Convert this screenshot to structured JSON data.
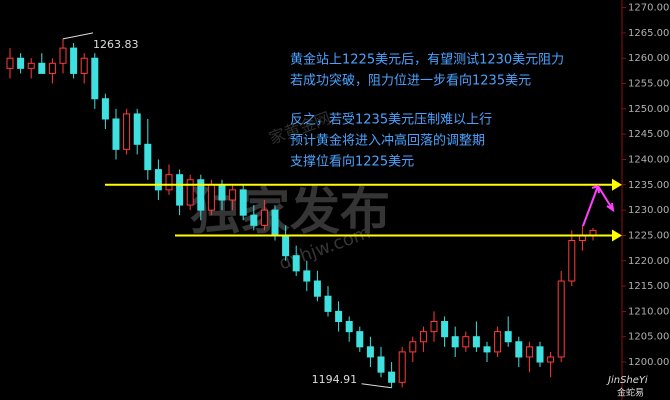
{
  "chart_data": {
    "type": "candlestick",
    "ylim": [
      1192.5,
      1271.5
    ],
    "yticks": [
      {
        "value": 1270,
        "label": "1270.00"
      },
      {
        "value": 1265,
        "label": "1265.00"
      },
      {
        "value": 1260,
        "label": "1260.00"
      },
      {
        "value": 1255,
        "label": "1255.00"
      },
      {
        "value": 1250,
        "label": "1250.00"
      },
      {
        "value": 1245,
        "label": "1245.00"
      },
      {
        "value": 1240,
        "label": "1240.00"
      },
      {
        "value": 1235,
        "label": "1235.00"
      },
      {
        "value": 1230,
        "label": "1230.00"
      },
      {
        "value": 1225,
        "label": "1225.00"
      },
      {
        "value": 1220,
        "label": "1220.00"
      },
      {
        "value": 1215,
        "label": "1215.00"
      },
      {
        "value": 1210,
        "label": "1210.00"
      },
      {
        "value": 1205,
        "label": "1205.00"
      },
      {
        "value": 1200,
        "label": "1200.00"
      }
    ],
    "up_color": "#ff3b3b",
    "down_color": "#3fe0e0",
    "line_color": "#ffff00",
    "ohlc": [
      [
        1258,
        1262,
        1256,
        1260
      ],
      [
        1260,
        1261,
        1257,
        1258
      ],
      [
        1258,
        1260,
        1256,
        1259
      ],
      [
        1259,
        1261,
        1257,
        1257
      ],
      [
        1257,
        1260,
        1255,
        1259
      ],
      [
        1259,
        1263.83,
        1257,
        1262
      ],
      [
        1262,
        1263,
        1256,
        1257
      ],
      [
        1257,
        1261,
        1255,
        1260
      ],
      [
        1260,
        1261,
        1250,
        1252
      ],
      [
        1252,
        1253,
        1246,
        1248
      ],
      [
        1248,
        1250,
        1240,
        1242
      ],
      [
        1242,
        1250,
        1241,
        1249
      ],
      [
        1249,
        1250,
        1241,
        1243
      ],
      [
        1243,
        1248,
        1236,
        1238
      ],
      [
        1238,
        1240,
        1232,
        1234
      ],
      [
        1234,
        1239,
        1233,
        1237
      ],
      [
        1237,
        1238,
        1229,
        1231
      ],
      [
        1231,
        1237,
        1230,
        1236
      ],
      [
        1236,
        1237,
        1228,
        1230
      ],
      [
        1230,
        1236,
        1229,
        1235
      ],
      [
        1235,
        1236,
        1230,
        1232
      ],
      [
        1232,
        1235,
        1230,
        1234
      ],
      [
        1234,
        1235,
        1228,
        1229
      ],
      [
        1229,
        1231,
        1226,
        1227
      ],
      [
        1227,
        1232,
        1226,
        1230
      ],
      [
        1230,
        1231,
        1224,
        1225
      ],
      [
        1225,
        1227,
        1220,
        1221
      ],
      [
        1221,
        1223,
        1217,
        1218
      ],
      [
        1218,
        1220,
        1214,
        1216
      ],
      [
        1216,
        1218,
        1212,
        1213
      ],
      [
        1213,
        1215,
        1209,
        1210
      ],
      [
        1210,
        1212,
        1206,
        1208
      ],
      [
        1208,
        1209,
        1204,
        1206
      ],
      [
        1206,
        1207,
        1202,
        1203
      ],
      [
        1203,
        1205,
        1199,
        1201
      ],
      [
        1201,
        1203,
        1197,
        1198
      ],
      [
        1198,
        1200,
        1194.91,
        1196
      ],
      [
        1196,
        1203,
        1195,
        1202
      ],
      [
        1202,
        1205,
        1200,
        1204
      ],
      [
        1204,
        1207,
        1202,
        1206
      ],
      [
        1206,
        1210,
        1204,
        1208
      ],
      [
        1208,
        1209,
        1203,
        1205
      ],
      [
        1205,
        1207,
        1201,
        1203
      ],
      [
        1203,
        1206,
        1202,
        1205
      ],
      [
        1205,
        1208,
        1202,
        1203
      ],
      [
        1203,
        1204,
        1200,
        1202
      ],
      [
        1202,
        1207,
        1201,
        1206
      ],
      [
        1206,
        1209,
        1203,
        1204
      ],
      [
        1204,
        1205,
        1199,
        1201
      ],
      [
        1201,
        1204,
        1198,
        1203
      ],
      [
        1203,
        1204,
        1199,
        1200
      ],
      [
        1200,
        1202,
        1197,
        1201
      ],
      [
        1201,
        1218,
        1200,
        1216
      ],
      [
        1216,
        1226,
        1215,
        1224
      ],
      [
        1224,
        1227,
        1222,
        1225
      ],
      [
        1225,
        1226.5,
        1224,
        1226
      ]
    ],
    "hlines": [
      1235,
      1225
    ],
    "annotations": [
      "黄金站上1225美元后，有望测试1230美元阻力",
      "若成功突破，阻力位进一步看向1235美元",
      "反之，若受1235美元压制难以上行",
      "预计黄金将进入冲高回落的调整期",
      "支撑位看向1225美元"
    ],
    "watermark": [
      "家黄金网",
      "独家发布",
      "dyhjw.com"
    ],
    "logo": [
      "JinSheYi",
      "金蛇易"
    ]
  }
}
